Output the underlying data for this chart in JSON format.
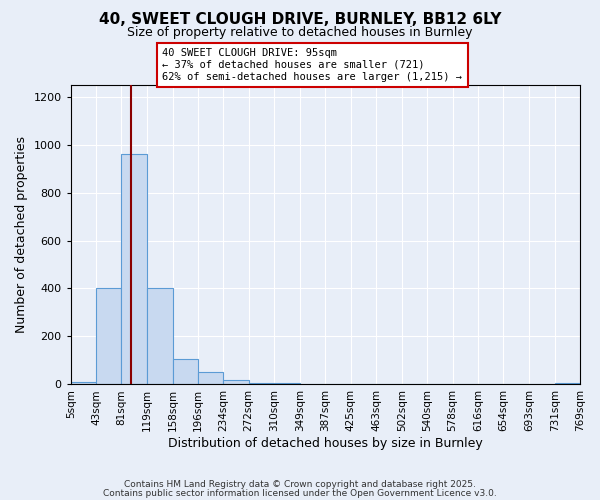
{
  "title": "40, SWEET CLOUGH DRIVE, BURNLEY, BB12 6LY",
  "subtitle": "Size of property relative to detached houses in Burnley",
  "xlabel": "Distribution of detached houses by size in Burnley",
  "ylabel": "Number of detached properties",
  "bin_edges": [
    5,
    43,
    81,
    119,
    158,
    196,
    234,
    272,
    310,
    349,
    387,
    425,
    463,
    502,
    540,
    578,
    616,
    654,
    693,
    731,
    769
  ],
  "bin_labels": [
    "5sqm",
    "43sqm",
    "81sqm",
    "119sqm",
    "158sqm",
    "196sqm",
    "234sqm",
    "272sqm",
    "310sqm",
    "349sqm",
    "387sqm",
    "425sqm",
    "463sqm",
    "502sqm",
    "540sqm",
    "578sqm",
    "616sqm",
    "654sqm",
    "693sqm",
    "731sqm",
    "769sqm"
  ],
  "bar_heights": [
    10,
    400,
    960,
    400,
    105,
    50,
    20,
    5,
    8,
    0,
    0,
    0,
    0,
    0,
    0,
    0,
    0,
    0,
    0,
    5
  ],
  "bar_color": "#c8d9f0",
  "bar_edge_color": "#5b9bd5",
  "vline_x": 95,
  "vline_color": "#8b0000",
  "ylim": [
    0,
    1250
  ],
  "yticks": [
    0,
    200,
    400,
    600,
    800,
    1000,
    1200
  ],
  "annotation_line1": "40 SWEET CLOUGH DRIVE: 95sqm",
  "annotation_line2": "← 37% of detached houses are smaller (721)",
  "annotation_line3": "62% of semi-detached houses are larger (1,215) →",
  "annotation_box_color": "#ffffff",
  "annotation_box_edge": "#cc0000",
  "footer1": "Contains HM Land Registry data © Crown copyright and database right 2025.",
  "footer2": "Contains public sector information licensed under the Open Government Licence v3.0.",
  "background_color": "#e8eef8",
  "plot_background": "#e8eef8",
  "grid_color": "#ffffff",
  "title_fontsize": 11,
  "subtitle_fontsize": 9
}
